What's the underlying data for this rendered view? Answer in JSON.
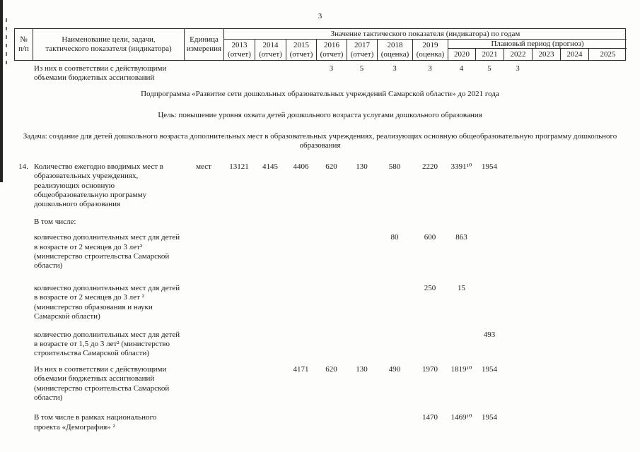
{
  "page": {
    "number": "3"
  },
  "table": {
    "header": {
      "num": [
        "№",
        "п/п"
      ],
      "name": [
        "Наименование цели, задачи,",
        "тактического показателя (индикатора)"
      ],
      "unit": [
        "Единица",
        "измерения"
      ],
      "values_title": "Значение тактического показателя (индикатора) по годам",
      "plan_title": "Плановый период (прогноз)",
      "report_years": [
        {
          "year": "2013",
          "note": "(отчет)"
        },
        {
          "year": "2014",
          "note": "(отчет)"
        },
        {
          "year": "2015",
          "note": "(отчет)"
        },
        {
          "year": "2016",
          "note": "(отчет)"
        },
        {
          "year": "2017",
          "note": "(отчет)"
        },
        {
          "year": "2018",
          "note": "(оценка)"
        },
        {
          "year": "2019",
          "note": "(оценка)"
        }
      ],
      "plan_years": [
        "2020",
        "2021",
        "2022",
        "2023",
        "2024",
        "2025"
      ]
    },
    "year_order": [
      "2013",
      "2014",
      "2015",
      "2016",
      "2017",
      "2018",
      "2019",
      "2020",
      "2021",
      "2022",
      "2023",
      "2024",
      "2025"
    ],
    "rows": [
      {
        "type": "data",
        "num": "",
        "unit": "",
        "name": "Из них в соответствии с действующими объемами бюджетных ассигнований",
        "values": {
          "2016": "3",
          "2017": "5",
          "2018": "3",
          "2019": "3",
          "2020": "4",
          "2021": "5",
          "2022": "3"
        }
      },
      {
        "type": "center",
        "text": "Подпрограмма «Развитие сети дошкольных образовательных учреждений Самарской области» до 2021 года"
      },
      {
        "type": "center",
        "text": "Цель: повышение уровня охвата детей дошкольного возраста услугами дошкольного образования"
      },
      {
        "type": "center",
        "text": "Задача: создание для детей дошкольного возраста дополнительных мест в образовательных учреждениях, реализующих основную общеобразовательную программу дошкольного образования"
      },
      {
        "type": "data",
        "num": "14.",
        "unit": "мест",
        "name": "Количество ежегодно вводимых мест в образовательных учреждениях, реализующих основную общеобразовательную программу дошкольного образования",
        "values": {
          "2013": "13121",
          "2014": "4145",
          "2015": "4406",
          "2016": "620",
          "2017": "130",
          "2018": "580",
          "2019": "2220",
          "2020": "3391¹⁰",
          "2021": "1954"
        }
      },
      {
        "type": "data",
        "num": "",
        "unit": "",
        "name": "В том числе:",
        "values": {}
      },
      {
        "type": "data",
        "num": "",
        "unit": "",
        "name": "количество дополнительных мест для детей в возрасте от 2 месяцев до 3 лет² (министерство строительства Самарской области)",
        "values": {
          "2018": "80",
          "2019": "600",
          "2020": "863"
        }
      },
      {
        "type": "data",
        "num": "",
        "unit": "",
        "name": "количество дополнительных мест для детей в возрасте от 2 месяцев до 3 лет ² (министерство образования и науки Самарской области)",
        "values": {
          "2019": "250",
          "2020": "15"
        }
      },
      {
        "type": "data",
        "num": "",
        "unit": "",
        "name": "количество дополнительных мест для детей в возрасте от 1,5 до 3 лет² (министерство строительства Самарской области)",
        "values": {
          "2021": "493"
        }
      },
      {
        "type": "data",
        "num": "",
        "unit": "",
        "name": "Из них в соответствии с действующими объемами бюджетных ассигнований (министерство строительства Самарской области)",
        "values": {
          "2015": "4171",
          "2016": "620",
          "2017": "130",
          "2018": "490",
          "2019": "1970",
          "2020": "1819¹⁰",
          "2021": "1954"
        }
      },
      {
        "type": "data",
        "num": "",
        "unit": "",
        "name": "В том числе в рамках национального проекта «Демография» ²",
        "values": {
          "2019": "1470",
          "2020": "1469¹⁰",
          "2021": "1954"
        }
      }
    ]
  }
}
